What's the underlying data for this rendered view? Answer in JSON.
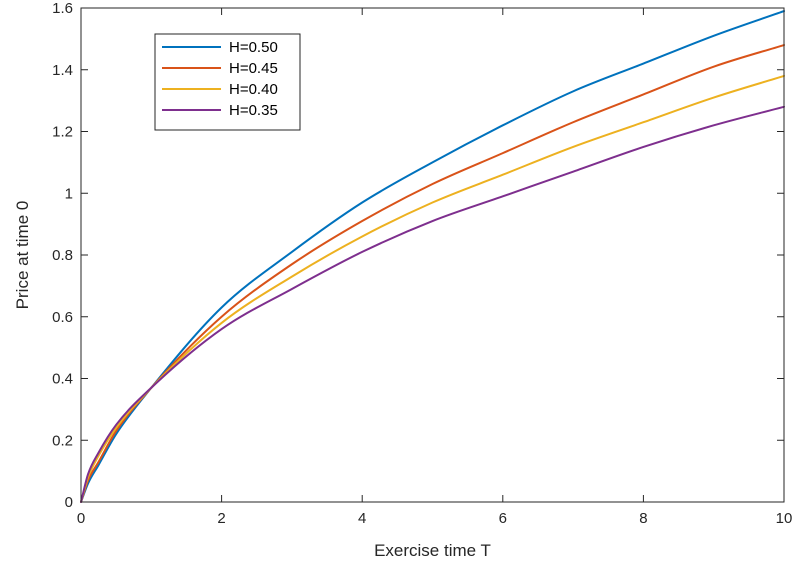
{
  "chart_data": {
    "type": "line",
    "title": "",
    "xlabel": "Exercise time T",
    "ylabel": "Price at time 0",
    "xlim": [
      0,
      10
    ],
    "ylim": [
      0,
      1.6
    ],
    "xticks": [
      "0",
      "2",
      "4",
      "6",
      "8",
      "10"
    ],
    "yticks": [
      "0",
      "0.2",
      "0.4",
      "0.6",
      "0.8",
      "1",
      "1.2",
      "1.4",
      "1.6"
    ],
    "grid": false,
    "legend_position": "top-left",
    "series": [
      {
        "name": "H=0.50",
        "color": "#0072BD",
        "x": [
          0,
          0.1,
          0.25,
          0.5,
          1,
          2,
          3,
          4,
          5,
          6,
          7,
          8,
          9,
          10
        ],
        "y": [
          0,
          0.06,
          0.12,
          0.22,
          0.37,
          0.63,
          0.81,
          0.97,
          1.1,
          1.22,
          1.33,
          1.42,
          1.51,
          1.59
        ]
      },
      {
        "name": "H=0.45",
        "color": "#D95319",
        "x": [
          0,
          0.1,
          0.25,
          0.5,
          1,
          2,
          3,
          4,
          5,
          6,
          7,
          8,
          9,
          10
        ],
        "y": [
          0,
          0.07,
          0.13,
          0.23,
          0.37,
          0.6,
          0.77,
          0.91,
          1.03,
          1.13,
          1.23,
          1.32,
          1.41,
          1.48
        ]
      },
      {
        "name": "H=0.40",
        "color": "#EDB120",
        "x": [
          0,
          0.1,
          0.25,
          0.5,
          1,
          2,
          3,
          4,
          5,
          6,
          7,
          8,
          9,
          10
        ],
        "y": [
          0,
          0.08,
          0.15,
          0.24,
          0.37,
          0.58,
          0.73,
          0.86,
          0.97,
          1.06,
          1.15,
          1.23,
          1.31,
          1.38
        ]
      },
      {
        "name": "H=0.35",
        "color": "#7E2F8E",
        "x": [
          0,
          0.1,
          0.25,
          0.5,
          1,
          2,
          3,
          4,
          5,
          6,
          7,
          8,
          9,
          10
        ],
        "y": [
          0,
          0.09,
          0.16,
          0.25,
          0.37,
          0.56,
          0.69,
          0.81,
          0.91,
          0.99,
          1.07,
          1.15,
          1.22,
          1.28
        ]
      }
    ]
  }
}
